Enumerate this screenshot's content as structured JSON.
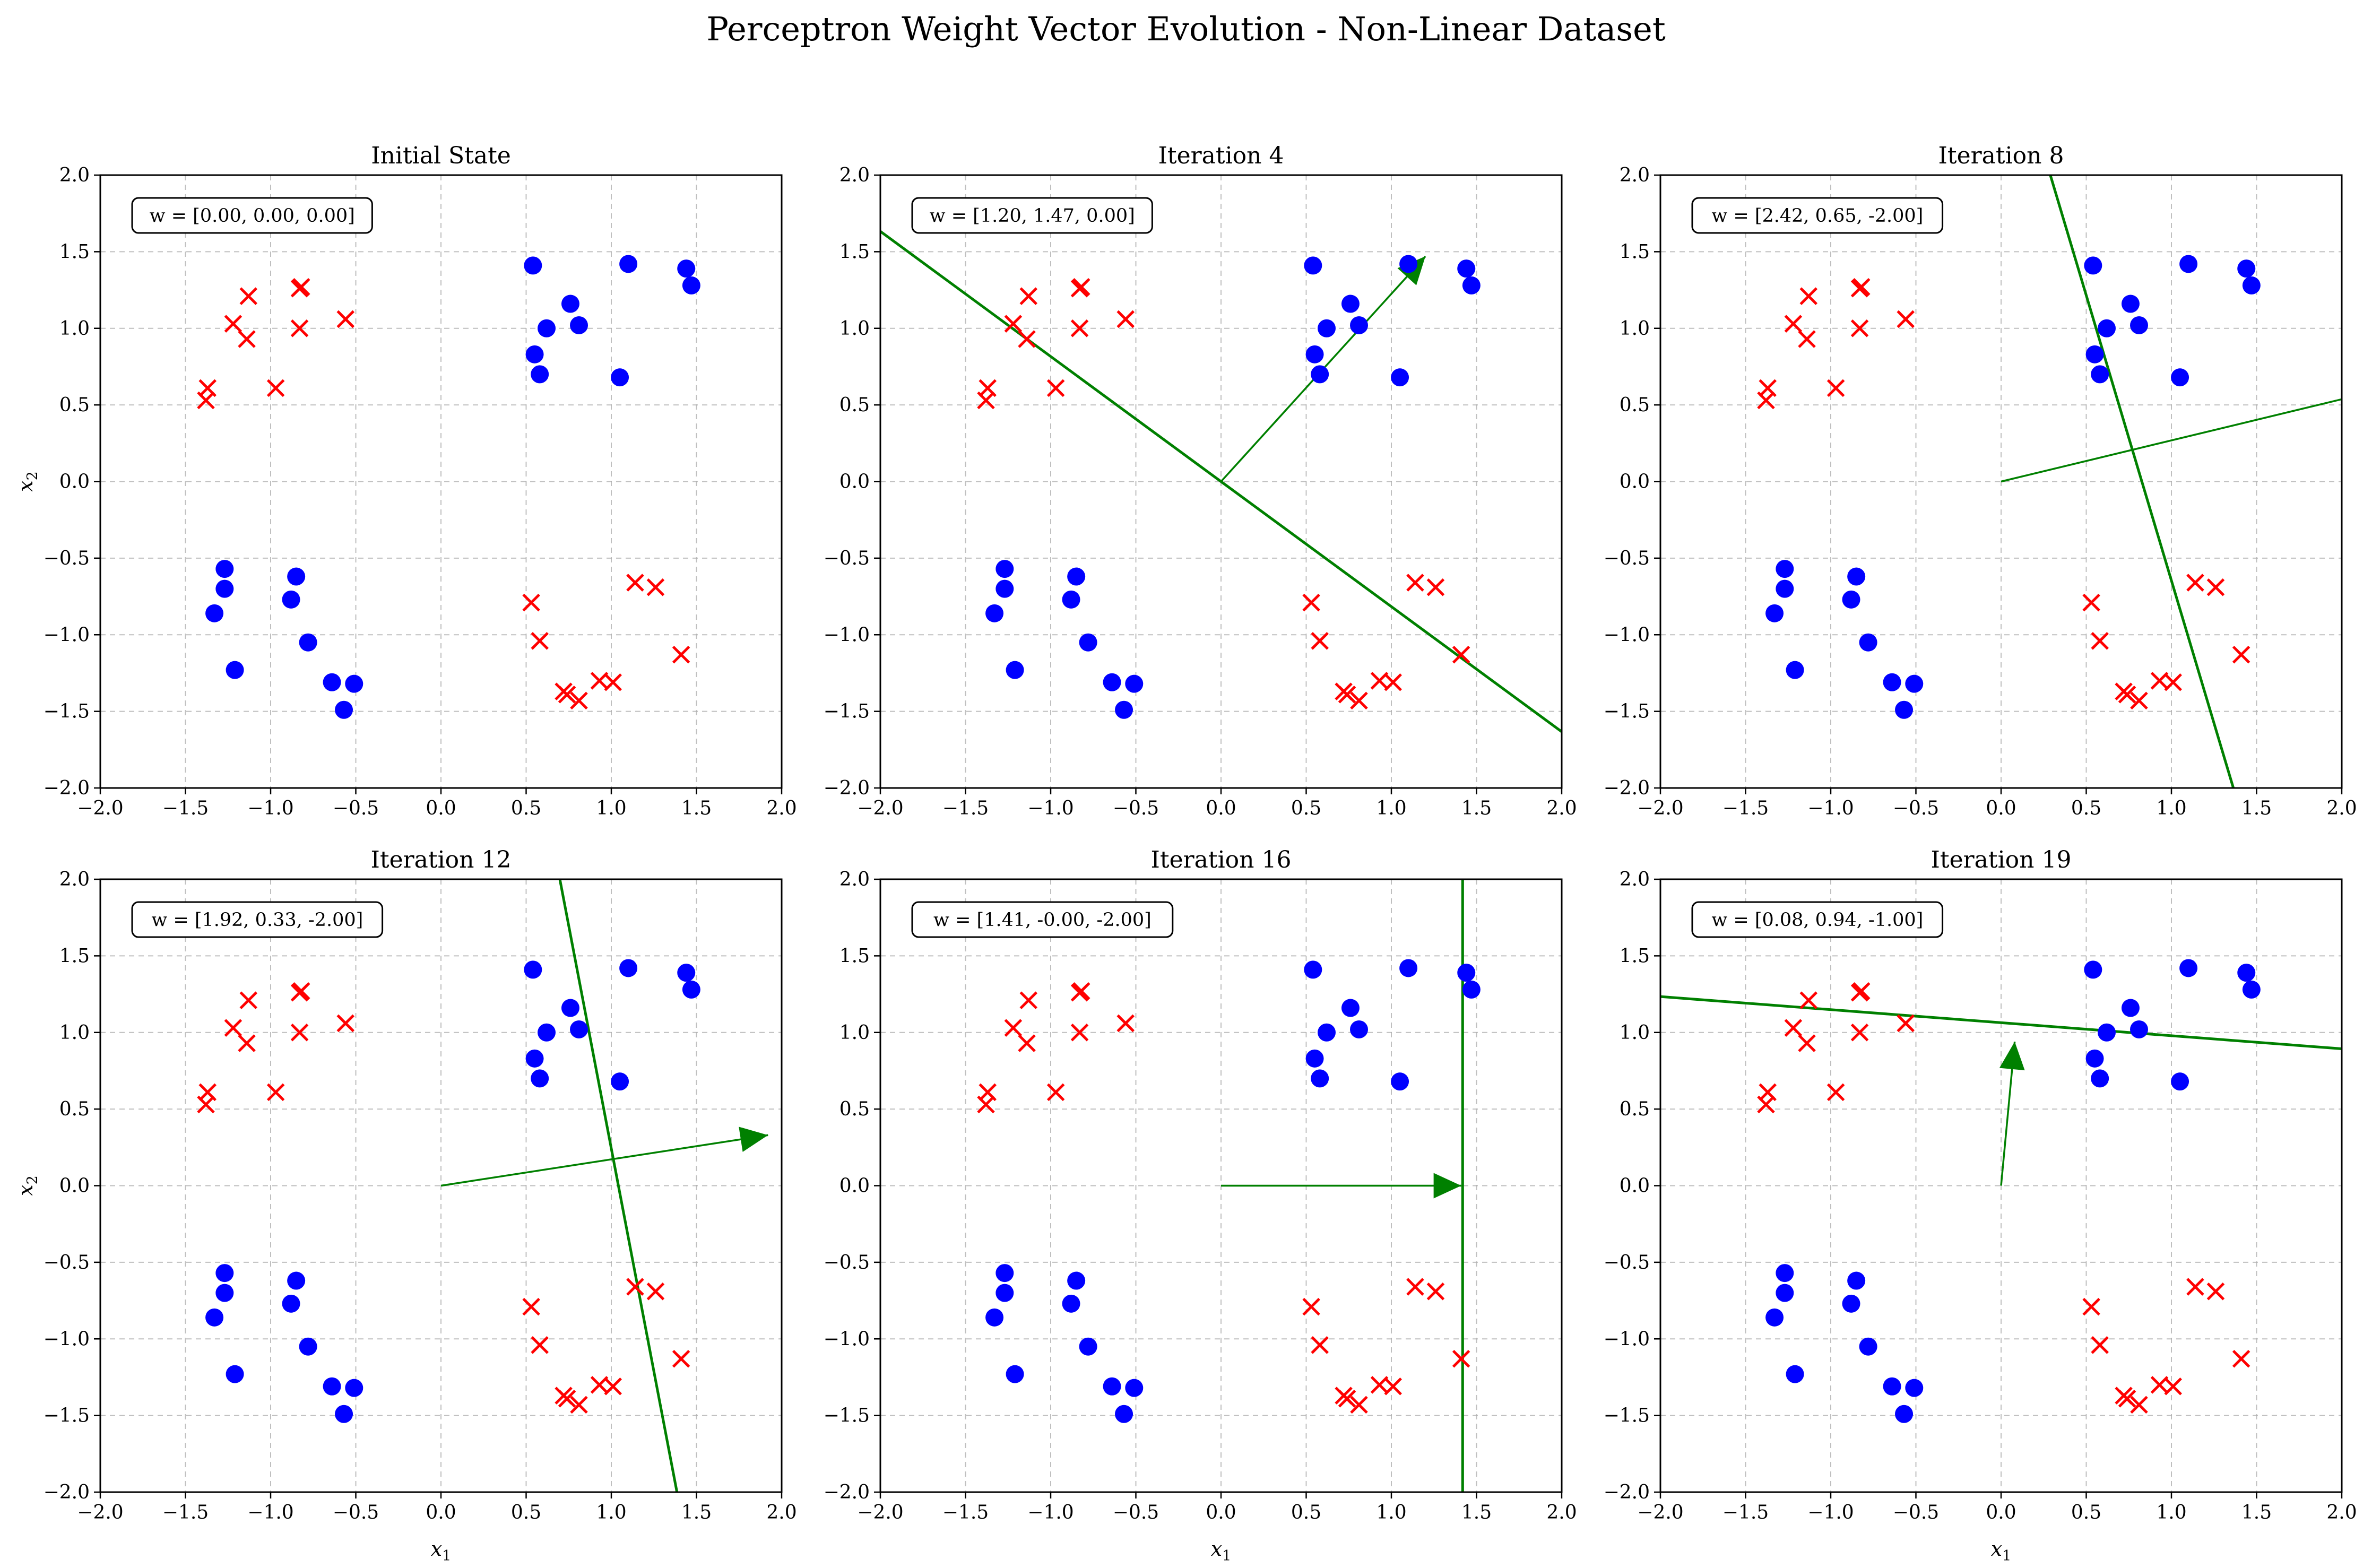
{
  "figure_title": "Perceptron Weight Vector Evolution - Non-Linear Dataset",
  "colors": {
    "class_pos": "#0000ff",
    "class_neg": "#ff0000",
    "boundary": "#008000",
    "grid": "#b0b0b0"
  },
  "chart_data": [
    {
      "type": "scatter",
      "title": "Initial State",
      "weights_label": "w = [0.00, 0.00, 0.00]",
      "w": [
        0.0,
        0.0,
        0.0
      ],
      "xlabel": "",
      "ylabel": "x_2",
      "xlim": [
        -2,
        2
      ],
      "ylim": [
        -2,
        2
      ],
      "ticks": [
        -2.0,
        -1.5,
        -1.0,
        -0.5,
        0.0,
        0.5,
        1.0,
        1.5,
        2.0
      ],
      "tick_labels": [
        "−2.0",
        "−1.5",
        "−1.0",
        "−0.5",
        "0.0",
        "0.5",
        "1.0",
        "1.5",
        "2.0"
      ],
      "grid": true,
      "boundary": false
    },
    {
      "type": "scatter",
      "title": "Iteration 4",
      "weights_label": "w = [1.20, 1.47, 0.00]",
      "w": [
        1.2,
        1.47,
        0.0
      ],
      "xlabel": "",
      "ylabel": "",
      "xlim": [
        -2,
        2
      ],
      "ylim": [
        -2,
        2
      ],
      "ticks": [
        -2.0,
        -1.5,
        -1.0,
        -0.5,
        0.0,
        0.5,
        1.0,
        1.5,
        2.0
      ],
      "tick_labels": [
        "−2.0",
        "−1.5",
        "−1.0",
        "−0.5",
        "0.0",
        "0.5",
        "1.0",
        "1.5",
        "2.0"
      ],
      "grid": true,
      "boundary": true
    },
    {
      "type": "scatter",
      "title": "Iteration 8",
      "weights_label": "w = [2.42, 0.65, -2.00]",
      "w": [
        2.42,
        0.65,
        -2.0
      ],
      "xlabel": "",
      "ylabel": "",
      "xlim": [
        -2,
        2
      ],
      "ylim": [
        -2,
        2
      ],
      "ticks": [
        -2.0,
        -1.5,
        -1.0,
        -0.5,
        0.0,
        0.5,
        1.0,
        1.5,
        2.0
      ],
      "tick_labels": [
        "−2.0",
        "−1.5",
        "−1.0",
        "−0.5",
        "0.0",
        "0.5",
        "1.0",
        "1.5",
        "2.0"
      ],
      "grid": true,
      "boundary": true
    },
    {
      "type": "scatter",
      "title": "Iteration 12",
      "weights_label": "w = [1.92, 0.33, -2.00]",
      "w": [
        1.92,
        0.33,
        -2.0
      ],
      "xlabel": "x_1",
      "ylabel": "x_2",
      "xlim": [
        -2,
        2
      ],
      "ylim": [
        -2,
        2
      ],
      "ticks": [
        -2.0,
        -1.5,
        -1.0,
        -0.5,
        0.0,
        0.5,
        1.0,
        1.5,
        2.0
      ],
      "tick_labels": [
        "−2.0",
        "−1.5",
        "−1.0",
        "−0.5",
        "0.0",
        "0.5",
        "1.0",
        "1.5",
        "2.0"
      ],
      "grid": true,
      "boundary": true
    },
    {
      "type": "scatter",
      "title": "Iteration 16",
      "weights_label": "w = [1.41, -0.00, -2.00]",
      "w": [
        1.41,
        0.0,
        -2.0
      ],
      "xlabel": "x_1",
      "ylabel": "",
      "xlim": [
        -2,
        2
      ],
      "ylim": [
        -2,
        2
      ],
      "ticks": [
        -2.0,
        -1.5,
        -1.0,
        -0.5,
        0.0,
        0.5,
        1.0,
        1.5,
        2.0
      ],
      "tick_labels": [
        "−2.0",
        "−1.5",
        "−1.0",
        "−0.5",
        "0.0",
        "0.5",
        "1.0",
        "1.5",
        "2.0"
      ],
      "grid": true,
      "boundary": true
    },
    {
      "type": "scatter",
      "title": "Iteration 19",
      "weights_label": "w = [0.08, 0.94, -1.00]",
      "w": [
        0.08,
        0.94,
        -1.0
      ],
      "xlabel": "x_1",
      "ylabel": "",
      "xlim": [
        -2,
        2
      ],
      "ylim": [
        -2,
        2
      ],
      "ticks": [
        -2.0,
        -1.5,
        -1.0,
        -0.5,
        0.0,
        0.5,
        1.0,
        1.5,
        2.0
      ],
      "tick_labels": [
        "−2.0",
        "−1.5",
        "−1.0",
        "−0.5",
        "0.0",
        "0.5",
        "1.0",
        "1.5",
        "2.0"
      ],
      "grid": true,
      "boundary": true
    }
  ],
  "points": {
    "class_pos": [
      [
        0.54,
        1.41
      ],
      [
        0.55,
        0.83
      ],
      [
        0.58,
        0.7
      ],
      [
        0.62,
        1.0
      ],
      [
        0.76,
        1.16
      ],
      [
        0.81,
        1.02
      ],
      [
        1.05,
        0.68
      ],
      [
        1.1,
        1.42
      ],
      [
        1.44,
        1.39
      ],
      [
        1.47,
        1.28
      ],
      [
        -1.27,
        -0.57
      ],
      [
        -1.27,
        -0.7
      ],
      [
        -1.33,
        -0.86
      ],
      [
        -1.21,
        -1.23
      ],
      [
        -0.85,
        -0.62
      ],
      [
        -0.88,
        -0.77
      ],
      [
        -0.78,
        -1.05
      ],
      [
        -0.64,
        -1.31
      ],
      [
        -0.51,
        -1.32
      ],
      [
        -0.57,
        -1.49
      ]
    ],
    "class_neg": [
      [
        -1.22,
        1.03
      ],
      [
        -1.13,
        1.21
      ],
      [
        -1.14,
        0.93
      ],
      [
        -0.83,
        1.26
      ],
      [
        -0.82,
        1.27
      ],
      [
        -0.83,
        1.0
      ],
      [
        -0.56,
        1.06
      ],
      [
        -0.97,
        0.61
      ],
      [
        -1.37,
        0.61
      ],
      [
        -1.38,
        0.53
      ],
      [
        0.53,
        -0.79
      ],
      [
        0.58,
        -1.04
      ],
      [
        0.72,
        -1.37
      ],
      [
        0.74,
        -1.39
      ],
      [
        0.81,
        -1.43
      ],
      [
        0.93,
        -1.3
      ],
      [
        1.01,
        -1.31
      ],
      [
        1.14,
        -0.66
      ],
      [
        1.26,
        -0.69
      ],
      [
        1.41,
        -1.13
      ]
    ]
  }
}
